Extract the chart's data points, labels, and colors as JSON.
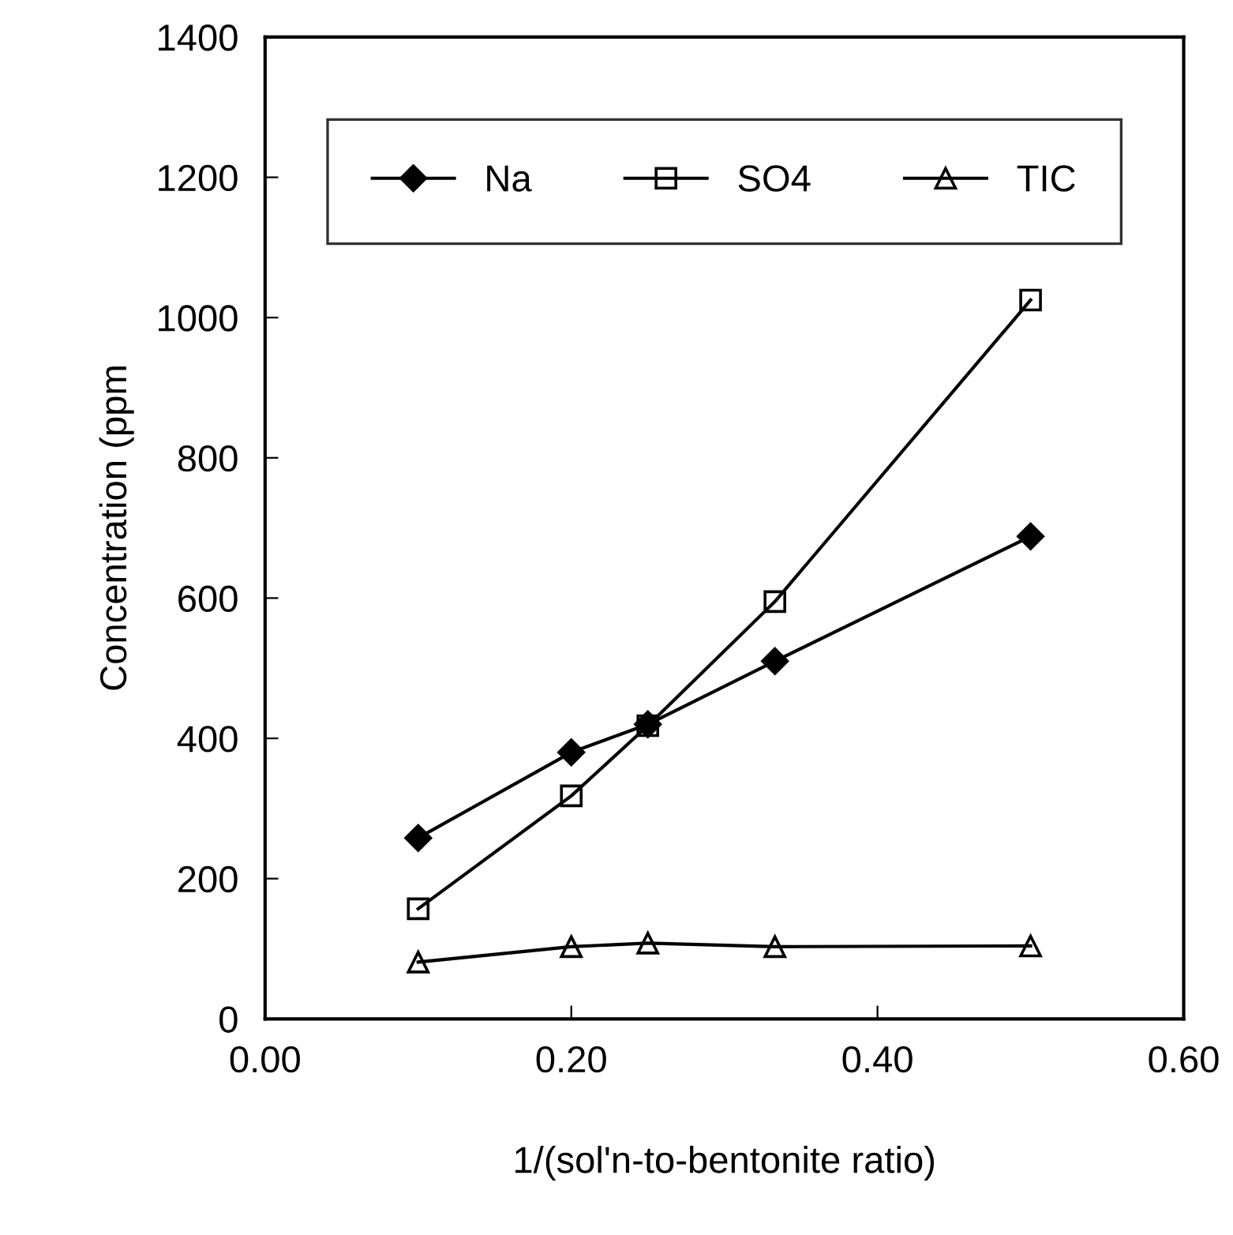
{
  "chart_data": {
    "type": "line",
    "xlabel": "1/(sol'n-to-bentonite ratio)",
    "ylabel": "Concentration (ppm",
    "xlim": [
      0,
      0.6
    ],
    "xticks": [
      {
        "value": 0,
        "label": "0.00"
      },
      {
        "value": 0.2,
        "label": "0.20"
      },
      {
        "value": 0.4,
        "label": "0.40"
      },
      {
        "value": 0.6,
        "label": "0.60"
      }
    ],
    "ylim": [
      0,
      1400
    ],
    "yticks": [
      0,
      200,
      400,
      600,
      800,
      1000,
      1200,
      1400
    ],
    "x": [
      0.1,
      0.2,
      0.25,
      0.333,
      0.5
    ],
    "series": [
      {
        "name": "Na",
        "color": "#000000",
        "marker": "diamond",
        "values": [
          258,
          380,
          420,
          510,
          688
        ]
      },
      {
        "name": "SO4",
        "color": "#000000",
        "marker": "square",
        "values": [
          157,
          318,
          418,
          595,
          1025
        ]
      },
      {
        "name": "TIC",
        "color": "#000000",
        "marker": "triangle",
        "values": [
          81,
          103,
          108,
          103,
          104
        ]
      }
    ],
    "grid": false,
    "legend": "top",
    "line_style": "solid"
  }
}
